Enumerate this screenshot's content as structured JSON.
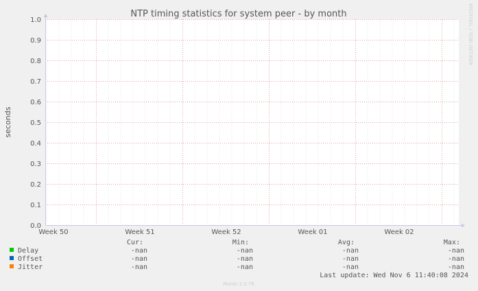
{
  "chart_data": {
    "type": "line",
    "title": "NTP timing statistics for system peer - by month",
    "ylabel": "seconds",
    "xlabel": "",
    "ylim": [
      0,
      1.0
    ],
    "yticks": [
      "0.0",
      "0.1",
      "0.2",
      "0.3",
      "0.4",
      "0.5",
      "0.6",
      "0.7",
      "0.8",
      "0.9",
      "1.0"
    ],
    "xticks": [
      "Week 50",
      "Week 51",
      "Week 52",
      "Week 01",
      "Week 02"
    ],
    "grid": true,
    "series": [
      {
        "name": "Delay",
        "color": "#00cc00",
        "values": []
      },
      {
        "name": "Offset",
        "color": "#0066b3",
        "values": []
      },
      {
        "name": "Jitter",
        "color": "#ff8000",
        "values": []
      }
    ]
  },
  "legend": {
    "headers": {
      "cur": "Cur:",
      "min": "Min:",
      "avg": "Avg:",
      "max": "Max:"
    },
    "rows": [
      {
        "name": "Delay",
        "color": "#00cc00",
        "cur": "-nan",
        "min": "-nan",
        "avg": "-nan",
        "max": "-nan"
      },
      {
        "name": "Offset",
        "color": "#0066b3",
        "cur": "-nan",
        "min": "-nan",
        "avg": "-nan",
        "max": "-nan"
      },
      {
        "name": "Jitter",
        "color": "#ff8000",
        "cur": "-nan",
        "min": "-nan",
        "avg": "-nan",
        "max": "-nan"
      }
    ]
  },
  "last_update": "Last update: Wed Nov  6 11:40:08 2024",
  "side_label": "RRDTOOL / TOBI OETIKER",
  "footer": "Munin 2.0.76"
}
